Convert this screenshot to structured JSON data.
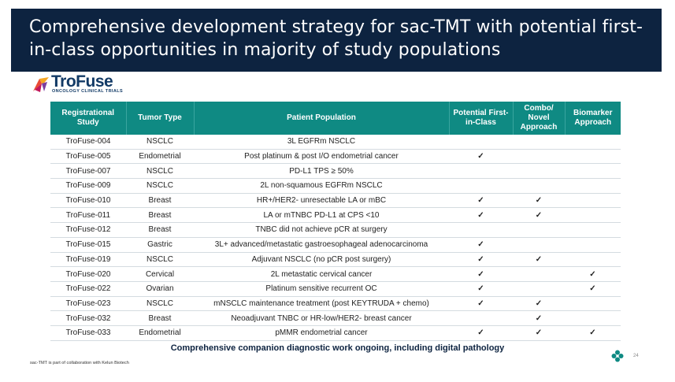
{
  "header": {
    "title": "Comprehensive development strategy for sac-TMT with potential first-in-class opportunities in majority of study populations"
  },
  "logo": {
    "name": "TroFuse",
    "subtitle": "ONCOLOGY CLINICAL TRIALS"
  },
  "table": {
    "headers": [
      "Registrational Study",
      "Tumor Type",
      "Patient Population",
      "Potential First-in-Class",
      "Combo/ Novel Approach",
      "Biomarker Approach"
    ],
    "check_mark": "✓",
    "rows": [
      {
        "study": "TroFuse-004",
        "tumor": "NSCLC",
        "population": "3L EGFRm NSCLC",
        "first": "",
        "combo": "",
        "biomarker": ""
      },
      {
        "study": "TroFuse-005",
        "tumor": "Endometrial",
        "population": "Post platinum & post I/O endometrial cancer",
        "first": "✓",
        "combo": "",
        "biomarker": ""
      },
      {
        "study": "TroFuse-007",
        "tumor": "NSCLC",
        "population": "PD-L1 TPS ≥ 50%",
        "first": "",
        "combo": "",
        "biomarker": ""
      },
      {
        "study": "TroFuse-009",
        "tumor": "NSCLC",
        "population": "2L non-squamous EGFRm NSCLC",
        "first": "",
        "combo": "",
        "biomarker": ""
      },
      {
        "study": "TroFuse-010",
        "tumor": "Breast",
        "population": "HR+/HER2- unresectable LA or mBC",
        "first": "✓",
        "combo": "✓",
        "biomarker": ""
      },
      {
        "study": "TroFuse-011",
        "tumor": "Breast",
        "population": "LA or mTNBC PD-L1 at CPS <10",
        "first": "✓",
        "combo": "✓",
        "biomarker": ""
      },
      {
        "study": "TroFuse-012",
        "tumor": "Breast",
        "population": "TNBC did not achieve pCR at surgery",
        "first": "",
        "combo": "",
        "biomarker": ""
      },
      {
        "study": "TroFuse-015",
        "tumor": "Gastric",
        "population": "3L+ advanced/metastatic gastroesophageal adenocarcinoma",
        "first": "✓",
        "combo": "",
        "biomarker": ""
      },
      {
        "study": "TroFuse-019",
        "tumor": "NSCLC",
        "population": "Adjuvant NSCLC (no pCR post surgery)",
        "first": "✓",
        "combo": "✓",
        "biomarker": ""
      },
      {
        "study": "TroFuse-020",
        "tumor": "Cervical",
        "population": "2L metastatic cervical cancer",
        "first": "✓",
        "combo": "",
        "biomarker": "✓"
      },
      {
        "study": "TroFuse-022",
        "tumor": "Ovarian",
        "population": "Platinum sensitive recurrent OC",
        "first": "✓",
        "combo": "",
        "biomarker": "✓"
      },
      {
        "study": "TroFuse-023",
        "tumor": "NSCLC",
        "population": "mNSCLC maintenance treatment (post KEYTRUDA + chemo)",
        "first": "✓",
        "combo": "✓",
        "biomarker": ""
      },
      {
        "study": "TroFuse-032",
        "tumor": "Breast",
        "population": "Neoadjuvant TNBC or HR-low/HER2- breast cancer",
        "first": "",
        "combo": "✓",
        "biomarker": ""
      },
      {
        "study": "TroFuse-033",
        "tumor": "Endometrial",
        "population": "pMMR endometrial cancer",
        "first": "✓",
        "combo": "✓",
        "biomarker": "✓"
      }
    ]
  },
  "footer": {
    "note": "Comprehensive companion diagnostic work ongoing, including digital pathology",
    "footnote": "sac-TMT is part of collaboration with Kelun Biotech",
    "page_number": "24"
  },
  "colors": {
    "title_bar": "#0d2340",
    "table_header": "#0f8a83",
    "check": "#23a055",
    "logo_text": "#123a66"
  }
}
